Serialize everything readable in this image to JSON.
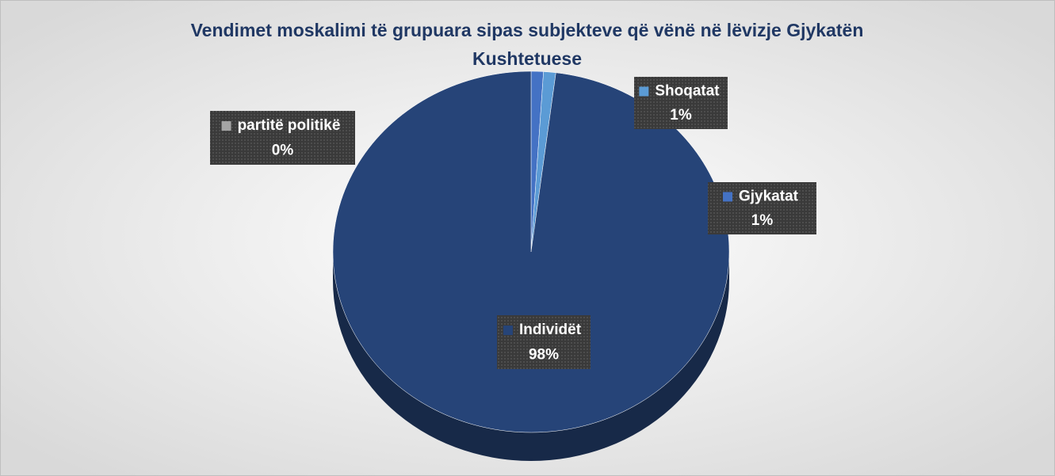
{
  "chart_data": {
    "type": "pie",
    "title": [
      "Vendimet moskalimi të grupuara sipas subjekteve që vënë në lëvizje Gjykatën",
      "Kushtetuese"
    ],
    "categories": [
      "partitë politikë",
      "Gjykatat",
      "Shoqatat",
      "Individët"
    ],
    "values": [
      0,
      1,
      1,
      98
    ],
    "value_labels": [
      "0%",
      "1%",
      "1%",
      "98%"
    ],
    "colors": [
      "#a5a5a5",
      "#4472c4",
      "#5b9bd5",
      "#264478"
    ],
    "three_d": true
  }
}
